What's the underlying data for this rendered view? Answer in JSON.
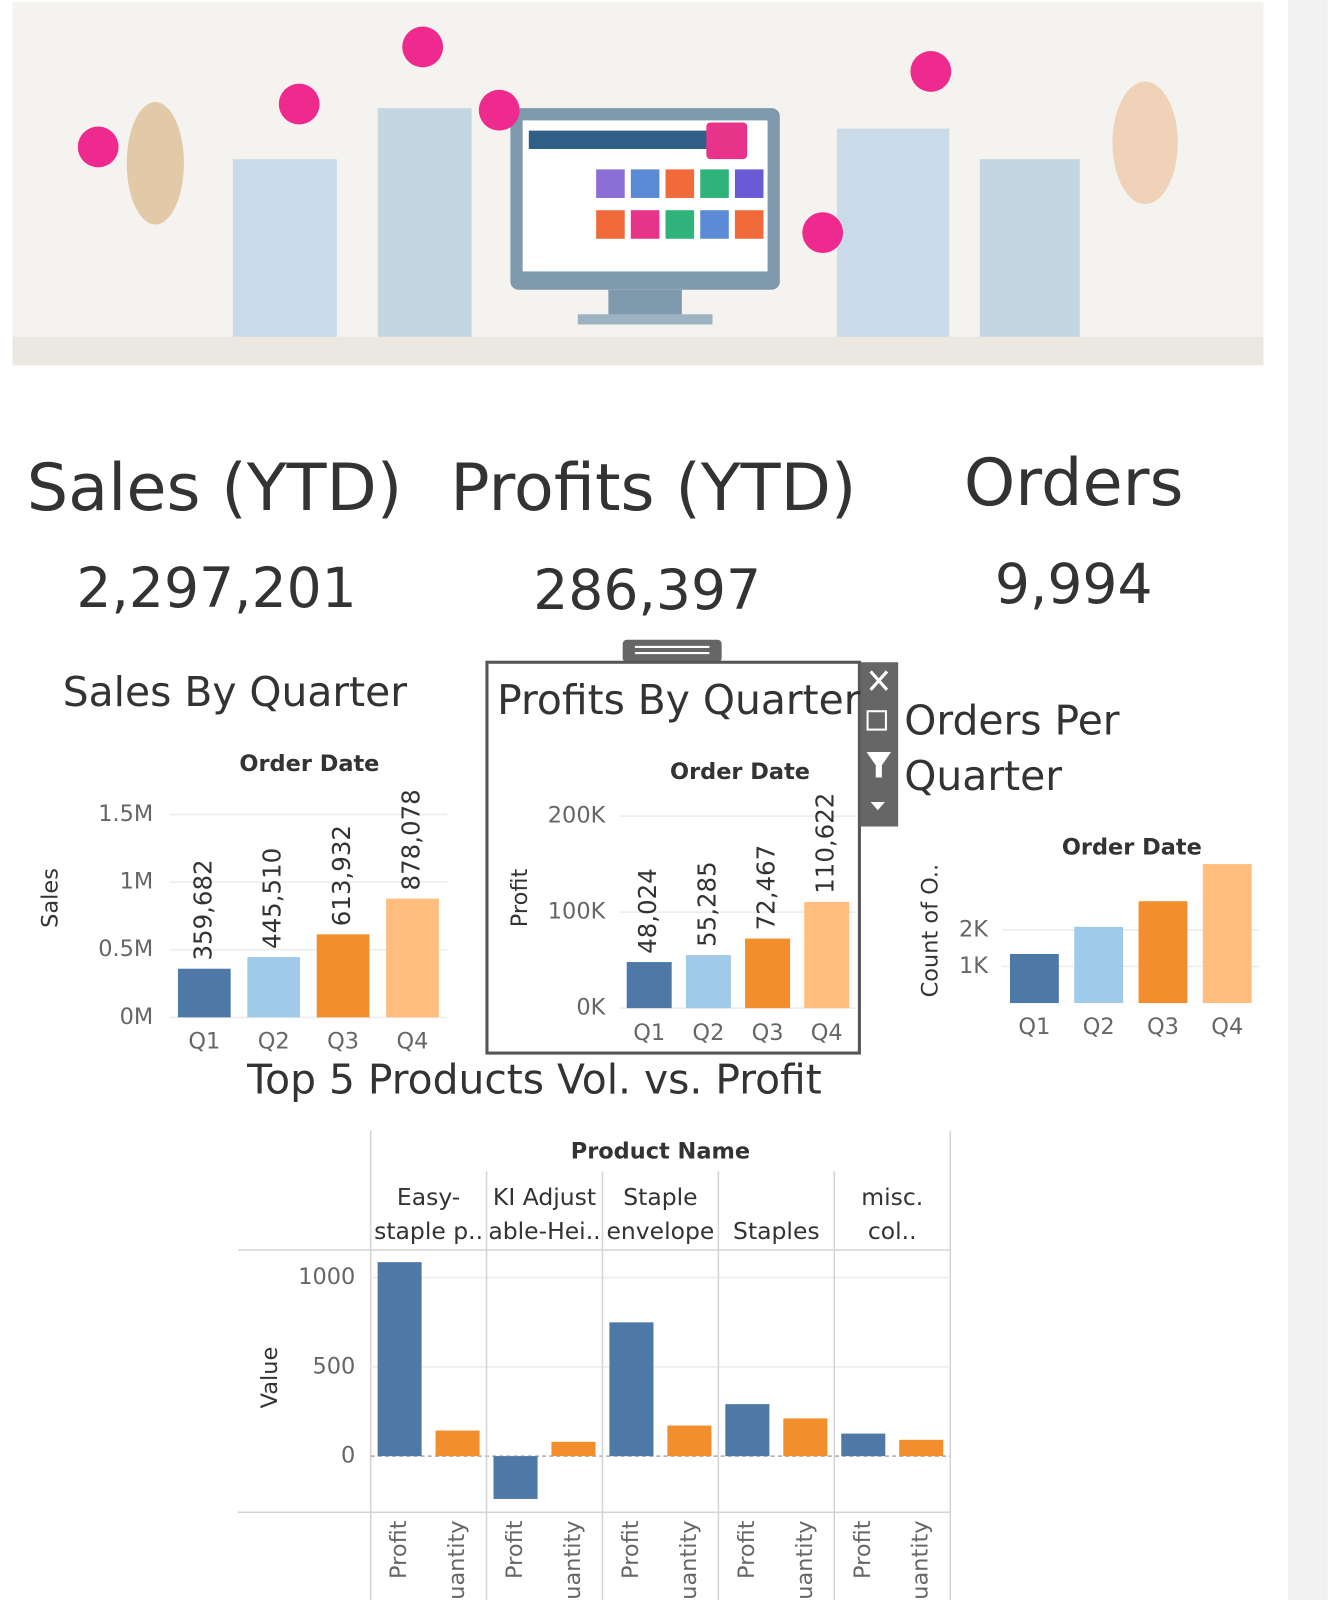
{
  "kpis": [
    {
      "title": "Sales (YTD)",
      "value": "2,297,201"
    },
    {
      "title": "Profits (YTD)",
      "value": "286,397"
    },
    {
      "title": "Orders",
      "value": "9,994"
    }
  ],
  "chart_data": [
    {
      "type": "bar",
      "title": "Sales By Quarter",
      "x_label": "Order Date",
      "y_label": "Sales",
      "categories": [
        "Q1",
        "Q2",
        "Q3",
        "Q4"
      ],
      "values": [
        359682,
        445510,
        613932,
        878078
      ],
      "value_labels": [
        "359,682",
        "445,510",
        "613,932",
        "878,078"
      ],
      "colors": [
        "#4e79a7",
        "#a0cbe8",
        "#f28e2b",
        "#ffbe7d"
      ],
      "ylim": [
        0,
        1600000
      ],
      "yticks": [
        {
          "value": 0,
          "label": "0M"
        },
        {
          "value": 500000,
          "label": "0.5M"
        },
        {
          "value": 1000000,
          "label": "1M"
        },
        {
          "value": 1500000,
          "label": "1.5M"
        }
      ],
      "grid": true
    },
    {
      "type": "bar",
      "title": "Profits By Quarter",
      "x_label": "Order Date",
      "y_label": "Profit",
      "categories": [
        "Q1",
        "Q2",
        "Q3",
        "Q4"
      ],
      "values": [
        48024,
        55285,
        72467,
        110622
      ],
      "value_labels": [
        "48,024",
        "55,285",
        "72,467",
        "110,622"
      ],
      "colors": [
        "#4e79a7",
        "#a0cbe8",
        "#f28e2b",
        "#ffbe7d"
      ],
      "ylim": [
        0,
        220000
      ],
      "yticks": [
        {
          "value": 0,
          "label": "0K"
        },
        {
          "value": 100000,
          "label": "100K"
        },
        {
          "value": 200000,
          "label": "200K"
        }
      ],
      "grid": true
    },
    {
      "type": "bar",
      "title": "Orders Per Quarter",
      "x_label": "Order Date",
      "y_label": "Count of O..",
      "categories": [
        "Q1",
        "Q2",
        "Q3",
        "Q4"
      ],
      "values": [
        1340,
        2080,
        2780,
        3794
      ],
      "colors": [
        "#4e79a7",
        "#a0cbe8",
        "#f28e2b",
        "#ffbe7d"
      ],
      "ylim": [
        0,
        3900
      ],
      "yticks": [
        {
          "value": 1000,
          "label": "1K"
        },
        {
          "value": 2000,
          "label": "2K"
        }
      ],
      "grid": true
    },
    {
      "type": "grouped_bar",
      "title": "Top 5 Products Vol. vs. Profit",
      "x_label": "Product Name",
      "y_label": "Value",
      "categories": [
        "Easy-staple p..",
        "KI Adjust able-Hei..",
        "Staple envelope",
        "Staples",
        "Staples in misc. col.."
      ],
      "series": [
        {
          "name": "Profit",
          "color": "#4e79a7",
          "values": [
            1086,
            -240,
            749,
            291,
            126
          ]
        },
        {
          "name": "Quantity",
          "color": "#f28e2b",
          "values": [
            143,
            80,
            171,
            211,
            91
          ]
        }
      ],
      "ylim": [
        -303,
        1137
      ],
      "yticks": [
        0,
        500,
        1000
      ],
      "grid": true
    }
  ]
}
